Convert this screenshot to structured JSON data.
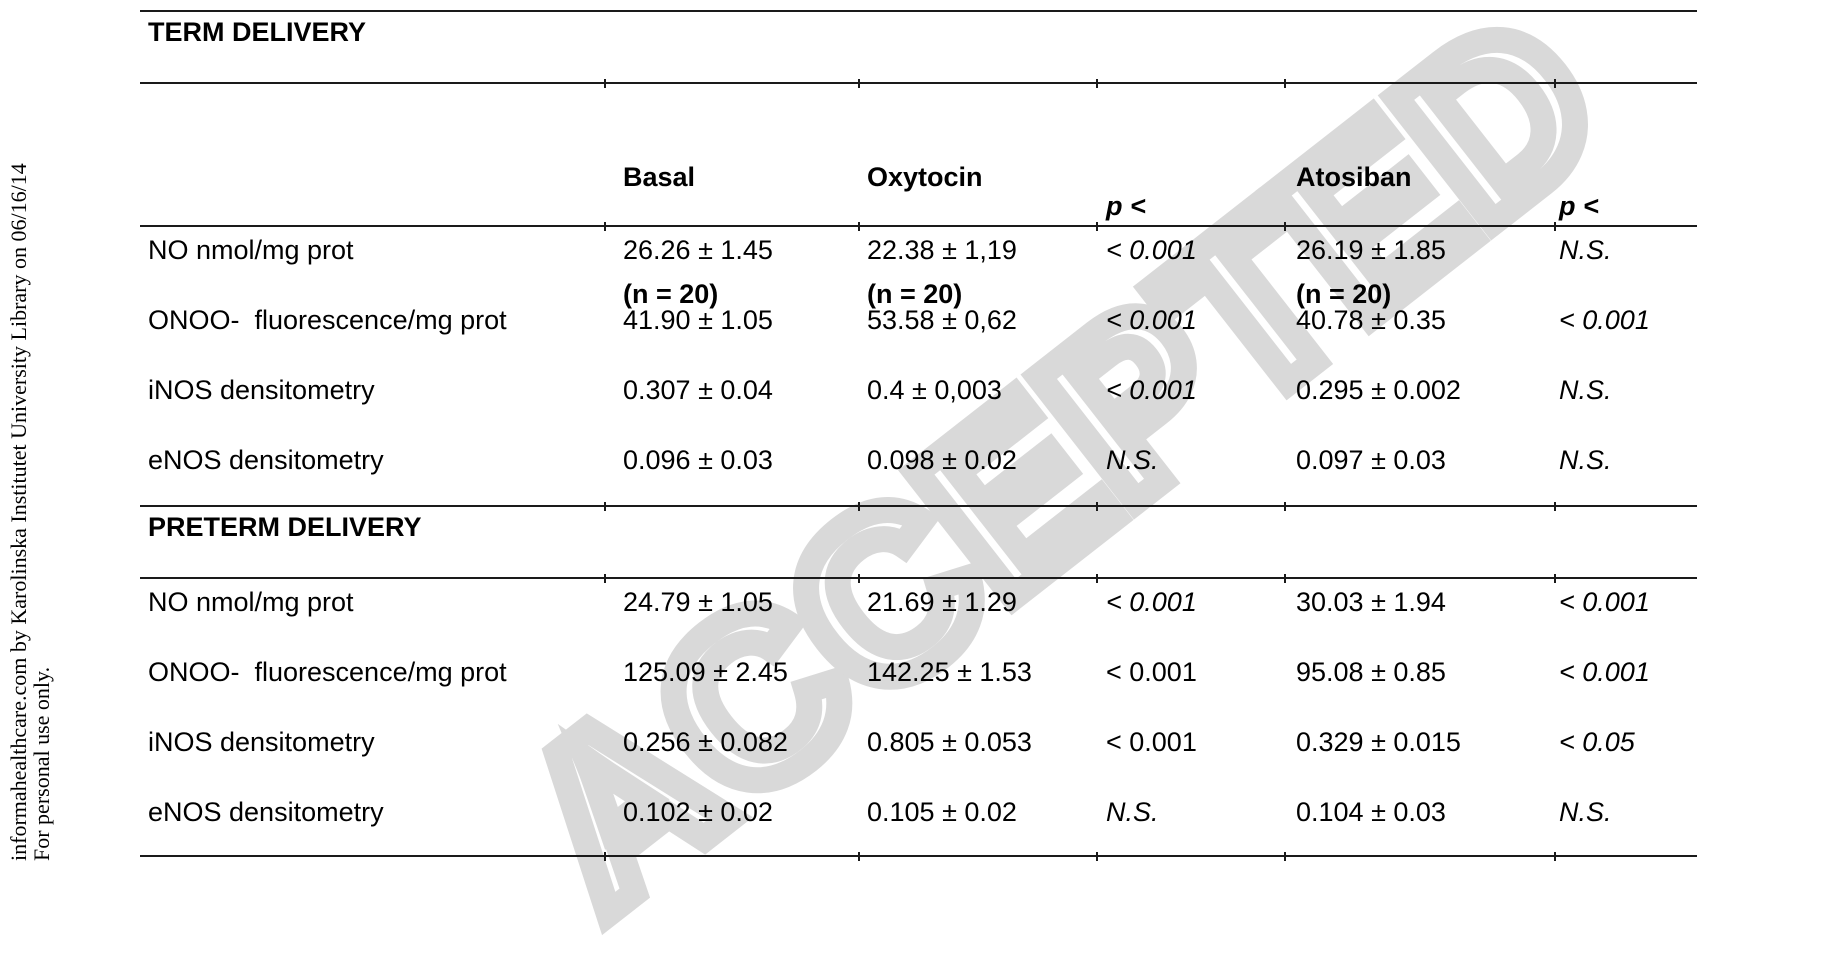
{
  "watermark": "ACCEPTED",
  "sidebar": {
    "line1": "informahealthcare.com by Karolinska Institutet University Library on 06/16/14",
    "line2": "For personal use only."
  },
  "colors": {
    "text": "#000000",
    "rule": "#1a1a1a",
    "watermark": "#d9d9d9"
  },
  "table": {
    "header": {
      "groups": [
        {
          "name": "Basal",
          "n": "(n = 20)"
        },
        {
          "name": "Oxytocin",
          "n": "(n = 20)"
        },
        {
          "name": "p <"
        },
        {
          "name": "Atosiban",
          "n": "(n = 20)"
        },
        {
          "name": "p <"
        }
      ]
    },
    "sections": [
      {
        "title": "TERM DELIVERY",
        "rows": [
          {
            "label": "NO nmol/mg prot",
            "basal": "26.26 ± 1.45",
            "oxytocin": "22.38 ± 1,19",
            "p1": {
              "text": "< 0.001",
              "italic": true
            },
            "atosiban": "26.19 ± 1.85",
            "p2": {
              "text": "N.S.",
              "italic": true
            }
          },
          {
            "label": "ONOO-  fluorescence/mg prot",
            "basal": "41.90 ± 1.05",
            "oxytocin": "53.58 ± 0,62",
            "p1": {
              "text": "< 0.001",
              "italic": true
            },
            "atosiban": "40.78 ± 0.35",
            "p2": {
              "text": "< 0.001",
              "italic": true
            }
          },
          {
            "label": "iNOS densitometry",
            "basal": "0.307 ± 0.04",
            "oxytocin": "0.4 ± 0,003",
            "p1": {
              "text": "< 0.001",
              "italic": true
            },
            "atosiban": "0.295 ± 0.002",
            "p2": {
              "text": "N.S.",
              "italic": true
            }
          },
          {
            "label": "eNOS densitometry",
            "basal": "0.096 ± 0.03",
            "oxytocin": "0.098 ± 0.02",
            "p1": {
              "text": "N.S.",
              "italic": true
            },
            "atosiban": "0.097 ± 0.03",
            "p2": {
              "text": "N.S.",
              "italic": true
            }
          }
        ]
      },
      {
        "title": "PRETERM DELIVERY",
        "rows": [
          {
            "label": "NO nmol/mg prot",
            "basal": "24.79 ± 1.05",
            "oxytocin": "21.69 ± 1.29",
            "p1": {
              "text": "< 0.001",
              "italic": true
            },
            "atosiban": "30.03 ± 1.94",
            "p2": {
              "text": "< 0.001",
              "italic": true
            }
          },
          {
            "label": "ONOO-  fluorescence/mg prot",
            "basal": "125.09 ± 2.45",
            "oxytocin": "142.25 ± 1.53",
            "p1": {
              "text": "< 0.001",
              "italic": false
            },
            "atosiban": "95.08 ± 0.85",
            "p2": {
              "text": "< 0.001",
              "italic": true
            }
          },
          {
            "label": "iNOS densitometry",
            "basal": "0.256 ± 0.082",
            "oxytocin": "0.805 ± 0.053",
            "p1": {
              "text": "< 0.001",
              "italic": false
            },
            "atosiban": "0.329 ± 0.015",
            "p2": {
              "text": "< 0.05",
              "italic": true
            }
          },
          {
            "label": "eNOS densitometry",
            "basal": "0.102 ± 0.02",
            "oxytocin": "0.105 ± 0.02",
            "p1": {
              "text": "N.S.",
              "italic": true
            },
            "atosiban": "0.104 ± 0.03",
            "p2": {
              "text": "N.S.",
              "italic": true
            }
          }
        ]
      }
    ]
  }
}
